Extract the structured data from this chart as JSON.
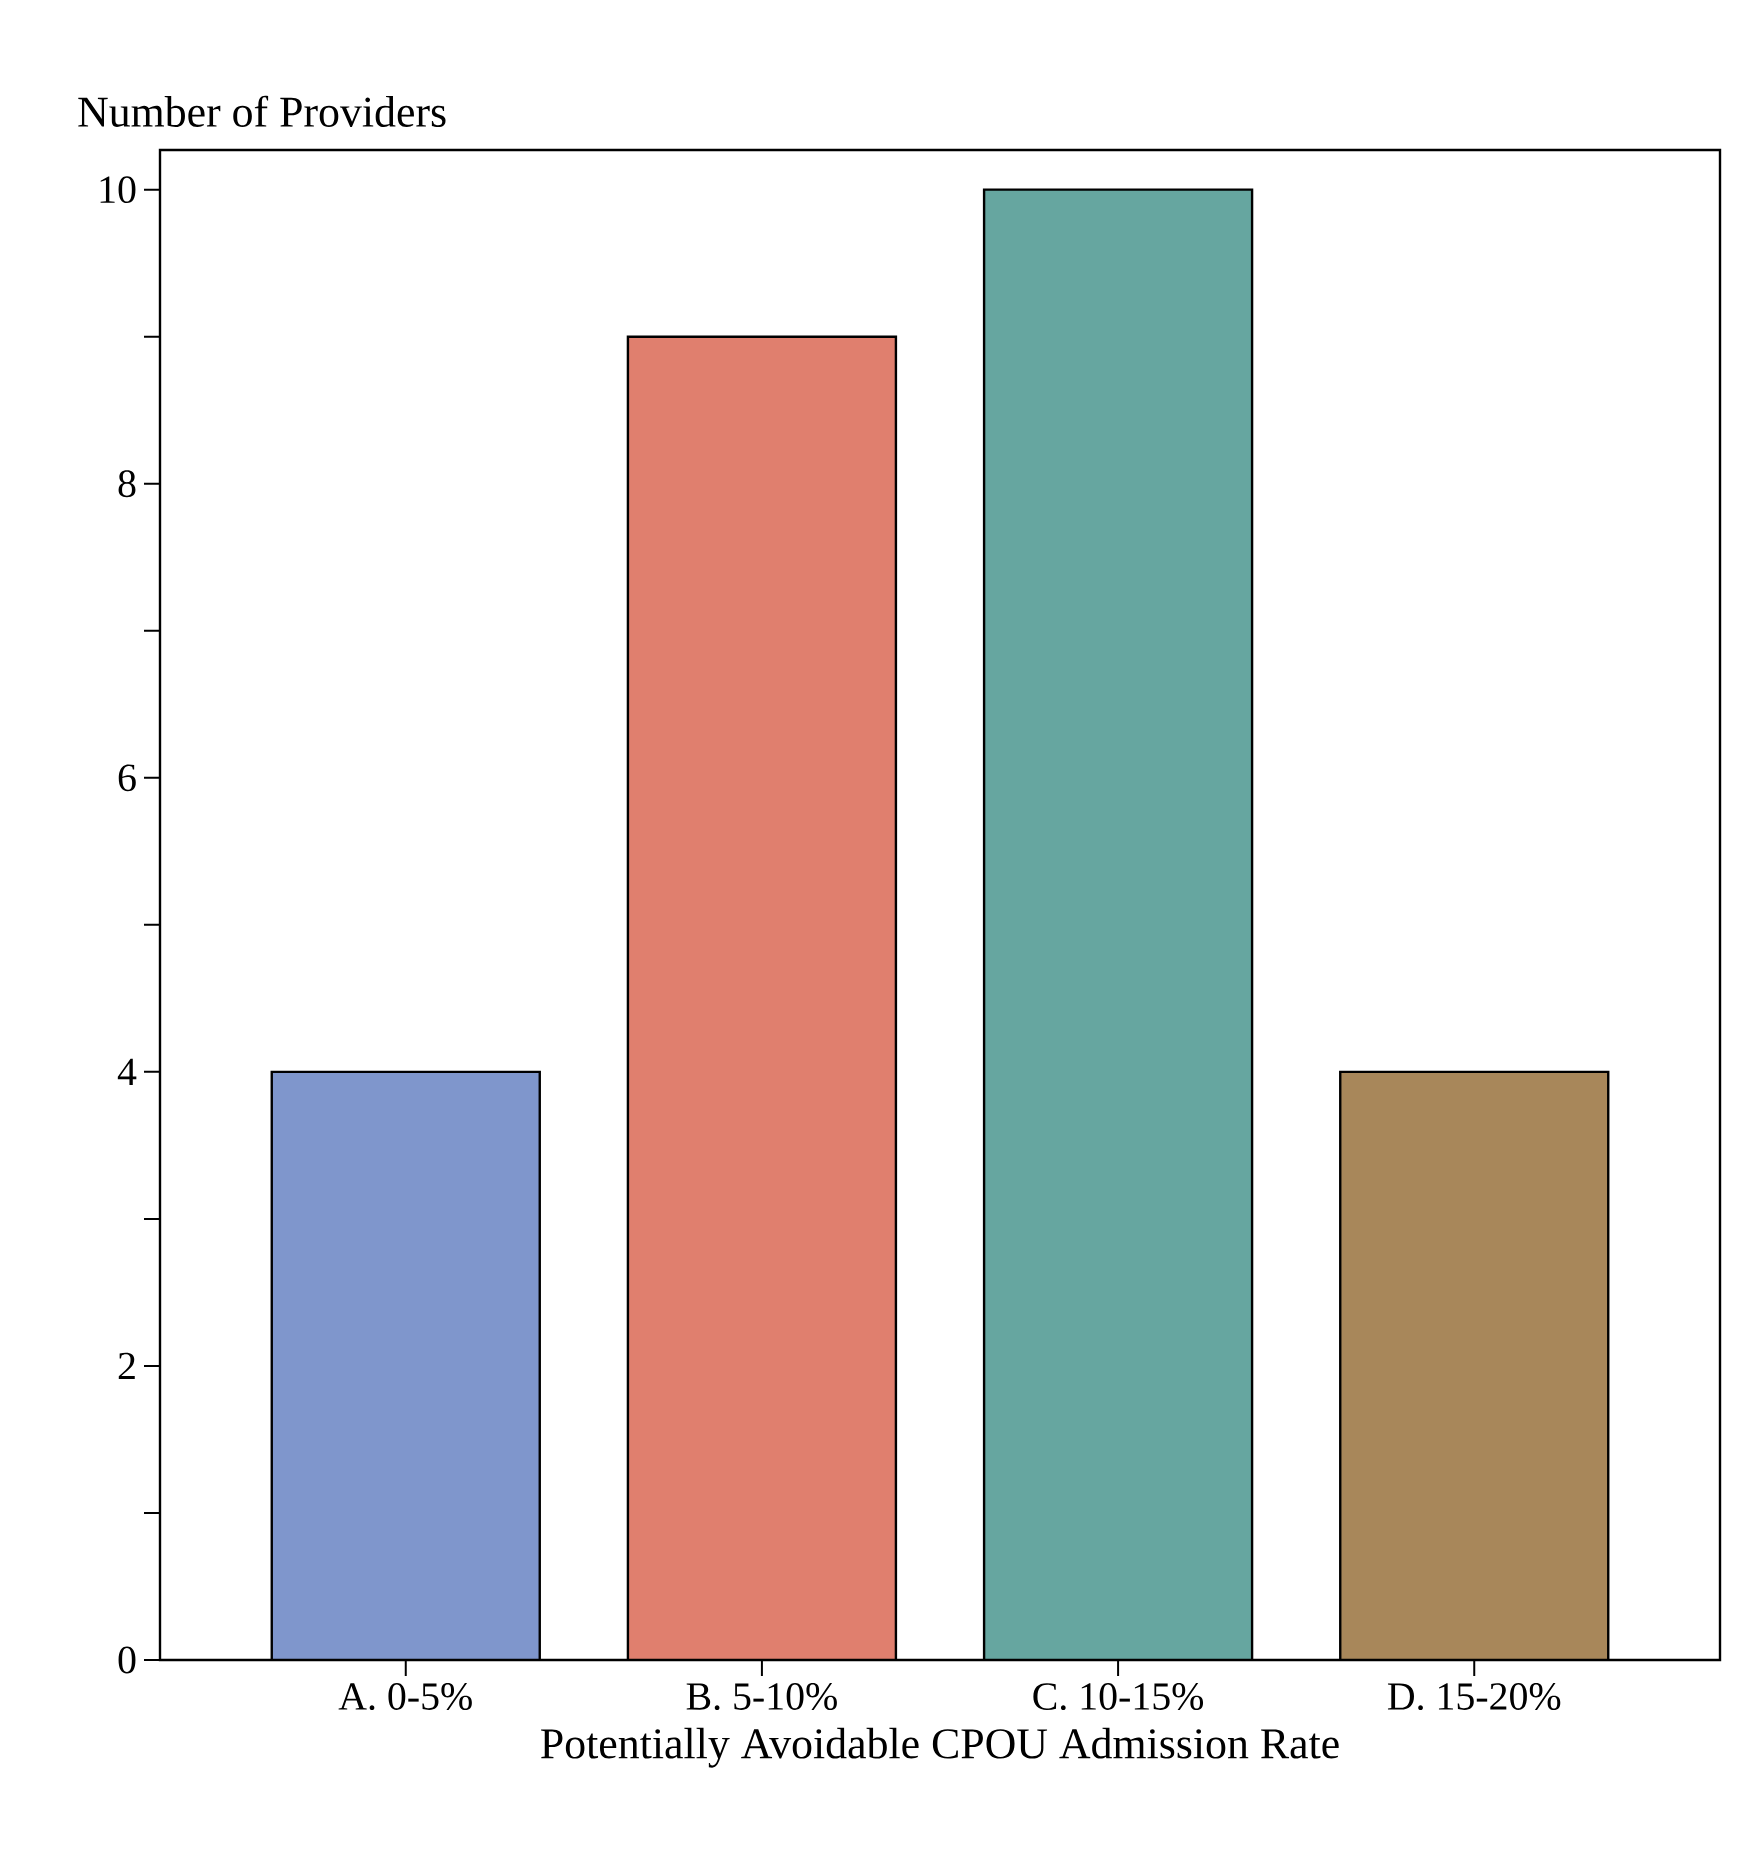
{
  "chart_data": {
    "type": "bar",
    "xlabel": "Potentially Avoidable CPOU Admission Rate",
    "ylabel": "Number of Providers",
    "categories": [
      "A. 0-5%",
      "B. 5-10%",
      "C. 10-15%",
      "D. 15-20%"
    ],
    "values": [
      4,
      9,
      10,
      4
    ],
    "colors": [
      "#7f96cc",
      "#e07f6e",
      "#66a6a0",
      "#a8875a"
    ],
    "ylim": [
      0,
      10.27
    ],
    "yticks": [
      0,
      {
        "value": 1,
        "label": null
      },
      2,
      {
        "value": 3,
        "label": null
      },
      4,
      {
        "value": 5,
        "label": null
      },
      6,
      {
        "value": 7,
        "label": null
      },
      8,
      {
        "value": 9,
        "label": null
      },
      10
    ],
    "grid": false
  }
}
